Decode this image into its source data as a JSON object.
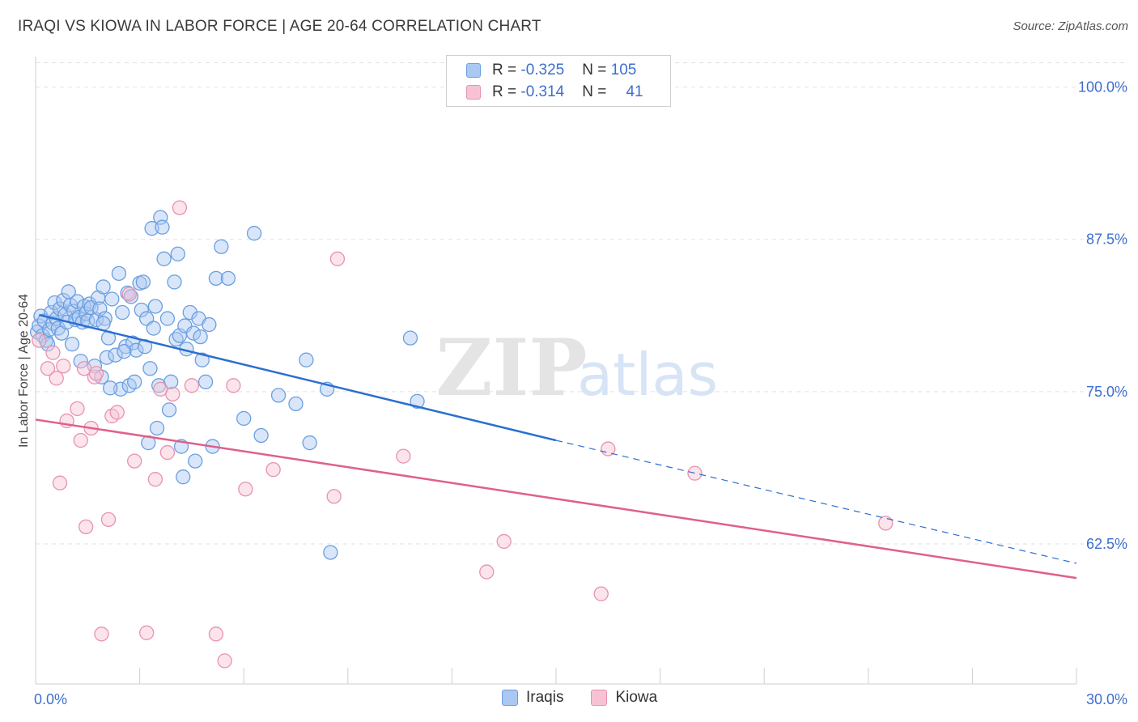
{
  "title": "IRAQI VS KIOWA IN LABOR FORCE | AGE 20-64 CORRELATION CHART",
  "source": "Source: ZipAtlas.com",
  "watermark": {
    "zip": "ZIP",
    "atlas": "atlas"
  },
  "legend": {
    "rows": [
      {
        "r_label": "R = ",
        "r_value": "-0.325",
        "n_label": "N = ",
        "n_value": "105"
      },
      {
        "r_label": "R = ",
        "r_value": "-0.314",
        "n_label": "N = ",
        "n_value": "41"
      }
    ]
  },
  "colors": {
    "blue_fill": "#aac8f2",
    "blue_stroke": "#6a9fe0",
    "blue_line": "#2b6fd0",
    "pink_fill": "#f7c3d4",
    "pink_stroke": "#e892ae",
    "pink_line": "#e0608a",
    "axis_label": "#3d6fd0",
    "grid": "#e2e2e2"
  },
  "chart_data": {
    "type": "scatter",
    "title": "IRAQI VS KIOWA IN LABOR FORCE | AGE 20-64 CORRELATION CHART",
    "xlabel": "",
    "ylabel": "In Labor Force | Age 20-64",
    "xlim": [
      0,
      30
    ],
    "ylim": [
      51,
      102.5
    ],
    "x_tick_labels": [
      "0.0%",
      "30.0%"
    ],
    "y_ticks": [
      62.5,
      75.0,
      87.5,
      100.0
    ],
    "y_tick_labels": [
      "62.5%",
      "75.0%",
      "87.5%",
      "100.0%"
    ],
    "series": [
      {
        "name": "Iraqis",
        "r": -0.325,
        "n": 105,
        "trend": {
          "x0": 0.1,
          "y0": 81.3,
          "x1": 15.0,
          "y1": 71.0,
          "x_dash_end": 30.0,
          "y_dash_end": 60.9
        },
        "points": [
          [
            0.05,
            79.9
          ],
          [
            0.1,
            80.4
          ],
          [
            0.15,
            81.2
          ],
          [
            0.2,
            79.6
          ],
          [
            0.25,
            80.8
          ],
          [
            0.3,
            79.2
          ],
          [
            0.35,
            78.9
          ],
          [
            0.4,
            80.1
          ],
          [
            0.45,
            81.5
          ],
          [
            0.5,
            80.6
          ],
          [
            0.55,
            82.3
          ],
          [
            0.6,
            81.0
          ],
          [
            0.65,
            80.2
          ],
          [
            0.7,
            81.8
          ],
          [
            0.75,
            79.8
          ],
          [
            0.8,
            82.5
          ],
          [
            0.85,
            81.3
          ],
          [
            0.9,
            80.7
          ],
          [
            0.95,
            83.2
          ],
          [
            1.0,
            82.1
          ],
          [
            1.05,
            78.9
          ],
          [
            1.1,
            81.6
          ],
          [
            1.15,
            80.9
          ],
          [
            1.2,
            82.4
          ],
          [
            1.25,
            81.1
          ],
          [
            1.3,
            77.5
          ],
          [
            1.35,
            80.7
          ],
          [
            1.4,
            82.0
          ],
          [
            1.45,
            81.4
          ],
          [
            1.5,
            80.8
          ],
          [
            1.55,
            82.2
          ],
          [
            1.6,
            81.9
          ],
          [
            1.7,
            77.1
          ],
          [
            1.75,
            80.9
          ],
          [
            1.8,
            82.7
          ],
          [
            1.85,
            81.8
          ],
          [
            1.9,
            76.2
          ],
          [
            1.95,
            83.6
          ],
          [
            2.0,
            81.0
          ],
          [
            2.05,
            77.8
          ],
          [
            2.1,
            79.4
          ],
          [
            2.2,
            82.6
          ],
          [
            2.3,
            78.0
          ],
          [
            2.4,
            84.7
          ],
          [
            2.45,
            75.2
          ],
          [
            2.5,
            81.5
          ],
          [
            2.6,
            78.7
          ],
          [
            2.65,
            83.1
          ],
          [
            2.7,
            75.5
          ],
          [
            2.75,
            82.8
          ],
          [
            2.8,
            79.0
          ],
          [
            2.85,
            75.8
          ],
          [
            2.9,
            78.4
          ],
          [
            3.0,
            83.9
          ],
          [
            3.05,
            81.7
          ],
          [
            3.1,
            84.0
          ],
          [
            3.15,
            78.7
          ],
          [
            3.2,
            81.0
          ],
          [
            3.25,
            70.8
          ],
          [
            3.3,
            76.9
          ],
          [
            3.35,
            88.4
          ],
          [
            3.4,
            80.2
          ],
          [
            3.45,
            82.0
          ],
          [
            3.5,
            72.0
          ],
          [
            3.55,
            75.5
          ],
          [
            3.6,
            89.3
          ],
          [
            3.65,
            88.5
          ],
          [
            3.7,
            85.9
          ],
          [
            3.8,
            81.0
          ],
          [
            3.85,
            73.5
          ],
          [
            3.9,
            75.8
          ],
          [
            4.0,
            84.0
          ],
          [
            4.05,
            79.3
          ],
          [
            4.1,
            86.3
          ],
          [
            4.15,
            79.6
          ],
          [
            4.2,
            70.5
          ],
          [
            4.25,
            68.0
          ],
          [
            4.3,
            80.4
          ],
          [
            4.35,
            78.5
          ],
          [
            4.45,
            81.5
          ],
          [
            4.55,
            79.8
          ],
          [
            4.6,
            69.3
          ],
          [
            4.7,
            81.0
          ],
          [
            4.75,
            79.5
          ],
          [
            4.8,
            77.6
          ],
          [
            4.9,
            75.8
          ],
          [
            5.0,
            80.5
          ],
          [
            5.1,
            70.5
          ],
          [
            5.2,
            84.3
          ],
          [
            5.35,
            86.9
          ],
          [
            5.55,
            84.3
          ],
          [
            6.0,
            72.8
          ],
          [
            6.3,
            88.0
          ],
          [
            6.5,
            71.4
          ],
          [
            7.0,
            74.7
          ],
          [
            7.5,
            74.0
          ],
          [
            7.8,
            77.6
          ],
          [
            7.9,
            70.8
          ],
          [
            8.4,
            75.2
          ],
          [
            8.5,
            61.8
          ],
          [
            10.8,
            79.4
          ],
          [
            11.0,
            74.2
          ],
          [
            1.95,
            80.6
          ],
          [
            2.15,
            75.3
          ],
          [
            2.55,
            78.3
          ]
        ]
      },
      {
        "name": "Kiowa",
        "r": -0.314,
        "n": 41,
        "trend": {
          "x0": 0.0,
          "y0": 72.7,
          "x1": 30.0,
          "y1": 59.7
        },
        "points": [
          [
            0.1,
            79.2
          ],
          [
            0.35,
            76.9
          ],
          [
            0.5,
            78.2
          ],
          [
            0.6,
            76.1
          ],
          [
            0.7,
            67.5
          ],
          [
            0.8,
            77.1
          ],
          [
            0.9,
            72.6
          ],
          [
            1.2,
            73.6
          ],
          [
            1.3,
            71.0
          ],
          [
            1.4,
            76.9
          ],
          [
            1.45,
            63.9
          ],
          [
            1.6,
            72.0
          ],
          [
            1.7,
            76.2
          ],
          [
            1.75,
            76.5
          ],
          [
            1.9,
            55.1
          ],
          [
            2.1,
            64.5
          ],
          [
            2.2,
            73.0
          ],
          [
            2.35,
            73.3
          ],
          [
            2.7,
            83.0
          ],
          [
            2.85,
            69.3
          ],
          [
            3.2,
            55.2
          ],
          [
            3.45,
            67.8
          ],
          [
            3.6,
            75.2
          ],
          [
            3.8,
            70.0
          ],
          [
            3.95,
            74.8
          ],
          [
            4.15,
            90.1
          ],
          [
            4.5,
            75.5
          ],
          [
            5.2,
            55.1
          ],
          [
            5.45,
            52.9
          ],
          [
            5.7,
            75.5
          ],
          [
            6.05,
            67.0
          ],
          [
            6.85,
            68.6
          ],
          [
            8.6,
            66.4
          ],
          [
            8.7,
            85.9
          ],
          [
            10.6,
            69.7
          ],
          [
            13.0,
            60.2
          ],
          [
            13.5,
            62.7
          ],
          [
            16.3,
            58.4
          ],
          [
            16.5,
            70.3
          ],
          [
            19.0,
            68.3
          ],
          [
            24.5,
            64.2
          ]
        ]
      }
    ]
  },
  "bottom_legend": {
    "items": [
      {
        "label": "Iraqis"
      },
      {
        "label": "Kiowa"
      }
    ]
  }
}
